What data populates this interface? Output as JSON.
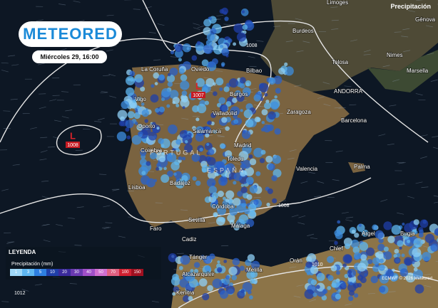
{
  "header": {
    "logo": "METEORED",
    "datetime": "Miércoles 29, 16:00",
    "layer": "Precipitación"
  },
  "pressure_centers": [
    {
      "symbol": "L",
      "value": "1008"
    },
    {
      "symbol": "L",
      "value": "1007"
    }
  ],
  "isobar_labels": [
    "1008",
    "1008",
    "1010",
    "1012"
  ],
  "countries": [
    "PORTUGAL",
    "ESPAÑA",
    "ANDORRA"
  ],
  "cities": [
    "Limoges",
    "Burdeos",
    "Tolosa",
    "Nimes",
    "Marsella",
    "Génova",
    "La Coruña",
    "Oviedo",
    "Bilbao",
    "Vigo",
    "Burgos",
    "Zaragoza",
    "Barcelona",
    "Valladolid",
    "Oporto",
    "Salamanca",
    "Madrid",
    "Coimbra",
    "Toledo",
    "Valencia",
    "Palma",
    "Lisboa",
    "Badajoz",
    "Córdoba",
    "Sevilla",
    "Faro",
    "Málaga",
    "Cadiz",
    "Tánger",
    "Orán",
    "Argel",
    "Bugia",
    "Chlef",
    "Melilla",
    "Alcazarquivir",
    "Kenitra"
  ],
  "legend": {
    "title": "LEYENDA",
    "subtitle": "Precipitación (mm)",
    "scale": [
      1,
      3,
      5,
      10,
      20,
      30,
      40,
      50,
      70,
      100,
      150
    ]
  },
  "credit": "ECMWF © 2026 Meteored"
}
